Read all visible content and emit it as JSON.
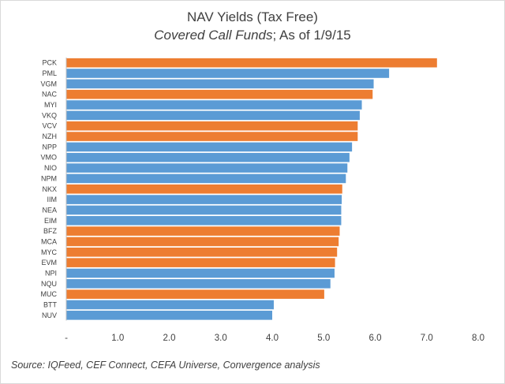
{
  "title": "NAV Yields (Tax Free)",
  "subtitle_italic": "Covered Call Funds",
  "subtitle_rest": "; As of 1/9/15",
  "source": "Source:  IQFeed, CEF Connect, CEFA Universe, Convergence analysis",
  "colors": {
    "blue": "#5b9bd5",
    "orange": "#ed7d31",
    "axis": "#bfbfbf",
    "text": "#404040"
  },
  "chart_data": {
    "type": "bar",
    "orientation": "horizontal",
    "title": "NAV Yields (Tax Free)",
    "subtitle": "Covered Call Funds; As of 1/9/15",
    "categories": [
      "PCK",
      "PML",
      "VGM",
      "NAC",
      "MYI",
      "VKQ",
      "VCV",
      "NZH",
      "NPP",
      "VMO",
      "NIO",
      "NPM",
      "NKX",
      "IIM",
      "NEA",
      "EIM",
      "BFZ",
      "MCA",
      "MYC",
      "EVM",
      "NPI",
      "NQU",
      "MUC",
      "BTT",
      "NUV"
    ],
    "values": [
      7.2,
      6.27,
      5.97,
      5.95,
      5.74,
      5.7,
      5.66,
      5.66,
      5.55,
      5.5,
      5.46,
      5.43,
      5.36,
      5.35,
      5.34,
      5.34,
      5.31,
      5.29,
      5.26,
      5.22,
      5.21,
      5.13,
      5.01,
      4.03,
      4.0
    ],
    "bar_colors": [
      "orange",
      "blue",
      "blue",
      "orange",
      "blue",
      "blue",
      "orange",
      "orange",
      "blue",
      "blue",
      "blue",
      "blue",
      "orange",
      "blue",
      "blue",
      "blue",
      "orange",
      "orange",
      "orange",
      "orange",
      "blue",
      "blue",
      "orange",
      "blue",
      "blue"
    ],
    "x_ticks": [
      "-",
      "1.0",
      "2.0",
      "3.0",
      "4.0",
      "5.0",
      "6.0",
      "7.0",
      "8.0"
    ],
    "xlim": [
      0,
      8
    ],
    "grid": false,
    "legend": "none"
  }
}
